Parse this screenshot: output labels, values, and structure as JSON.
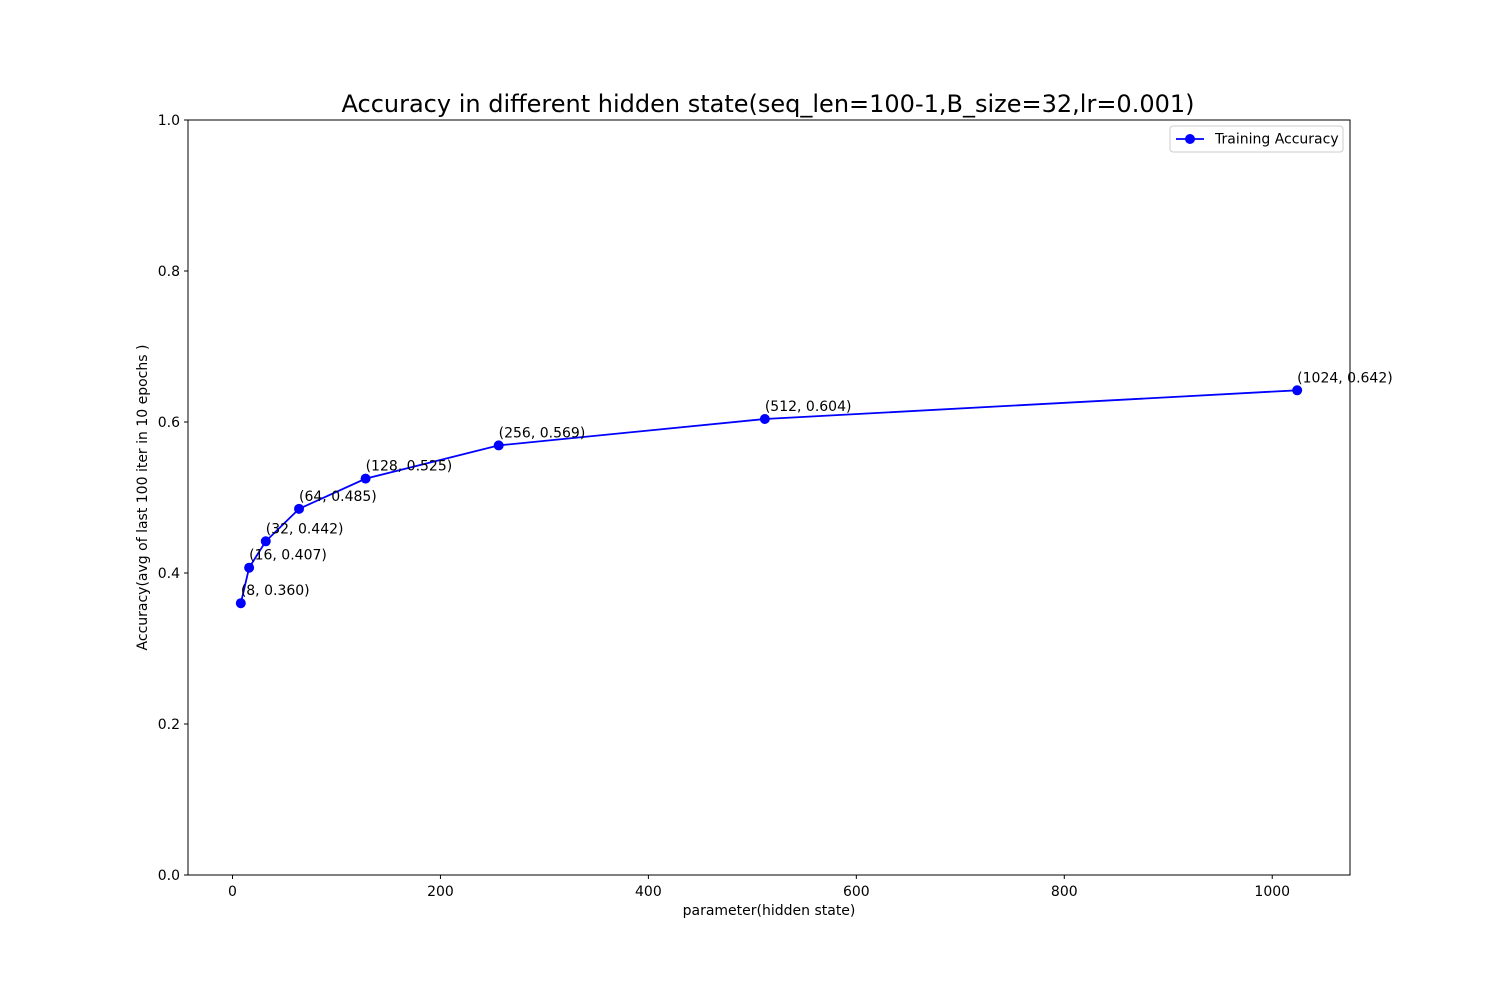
{
  "chart_data": {
    "type": "line",
    "title": "Accuracy in different hidden state(seq_len=100-1,B_size=32,lr=0.001)",
    "xlabel": "parameter(hidden state)",
    "ylabel": "Accuracy(avg of last 100 iter in 10 epochs )",
    "xlim": [
      -42.8,
      1074.8
    ],
    "ylim": [
      0.0,
      1.0
    ],
    "xticks": [
      0,
      200,
      400,
      600,
      800,
      1000
    ],
    "xtick_labels": [
      "0",
      "200",
      "400",
      "600",
      "800",
      "1000"
    ],
    "yticks": [
      0.0,
      0.2,
      0.4,
      0.6,
      0.8,
      1.0
    ],
    "ytick_labels": [
      "0.0",
      "0.2",
      "0.4",
      "0.6",
      "0.8",
      "1.0"
    ],
    "grid": false,
    "legend_position": "top-right",
    "series": [
      {
        "name": "Training Accuracy",
        "color": "#0000ff",
        "marker": "circle",
        "x": [
          8,
          16,
          32,
          64,
          128,
          256,
          512,
          1024
        ],
        "y": [
          0.36,
          0.407,
          0.442,
          0.485,
          0.525,
          0.569,
          0.604,
          0.642
        ]
      }
    ],
    "annotations": [
      "(8, 0.360)",
      "(16, 0.407)",
      "(32, 0.442)",
      "(64, 0.485)",
      "(128, 0.525)",
      "(256, 0.569)",
      "(512, 0.604)",
      "(1024, 0.642)"
    ]
  }
}
